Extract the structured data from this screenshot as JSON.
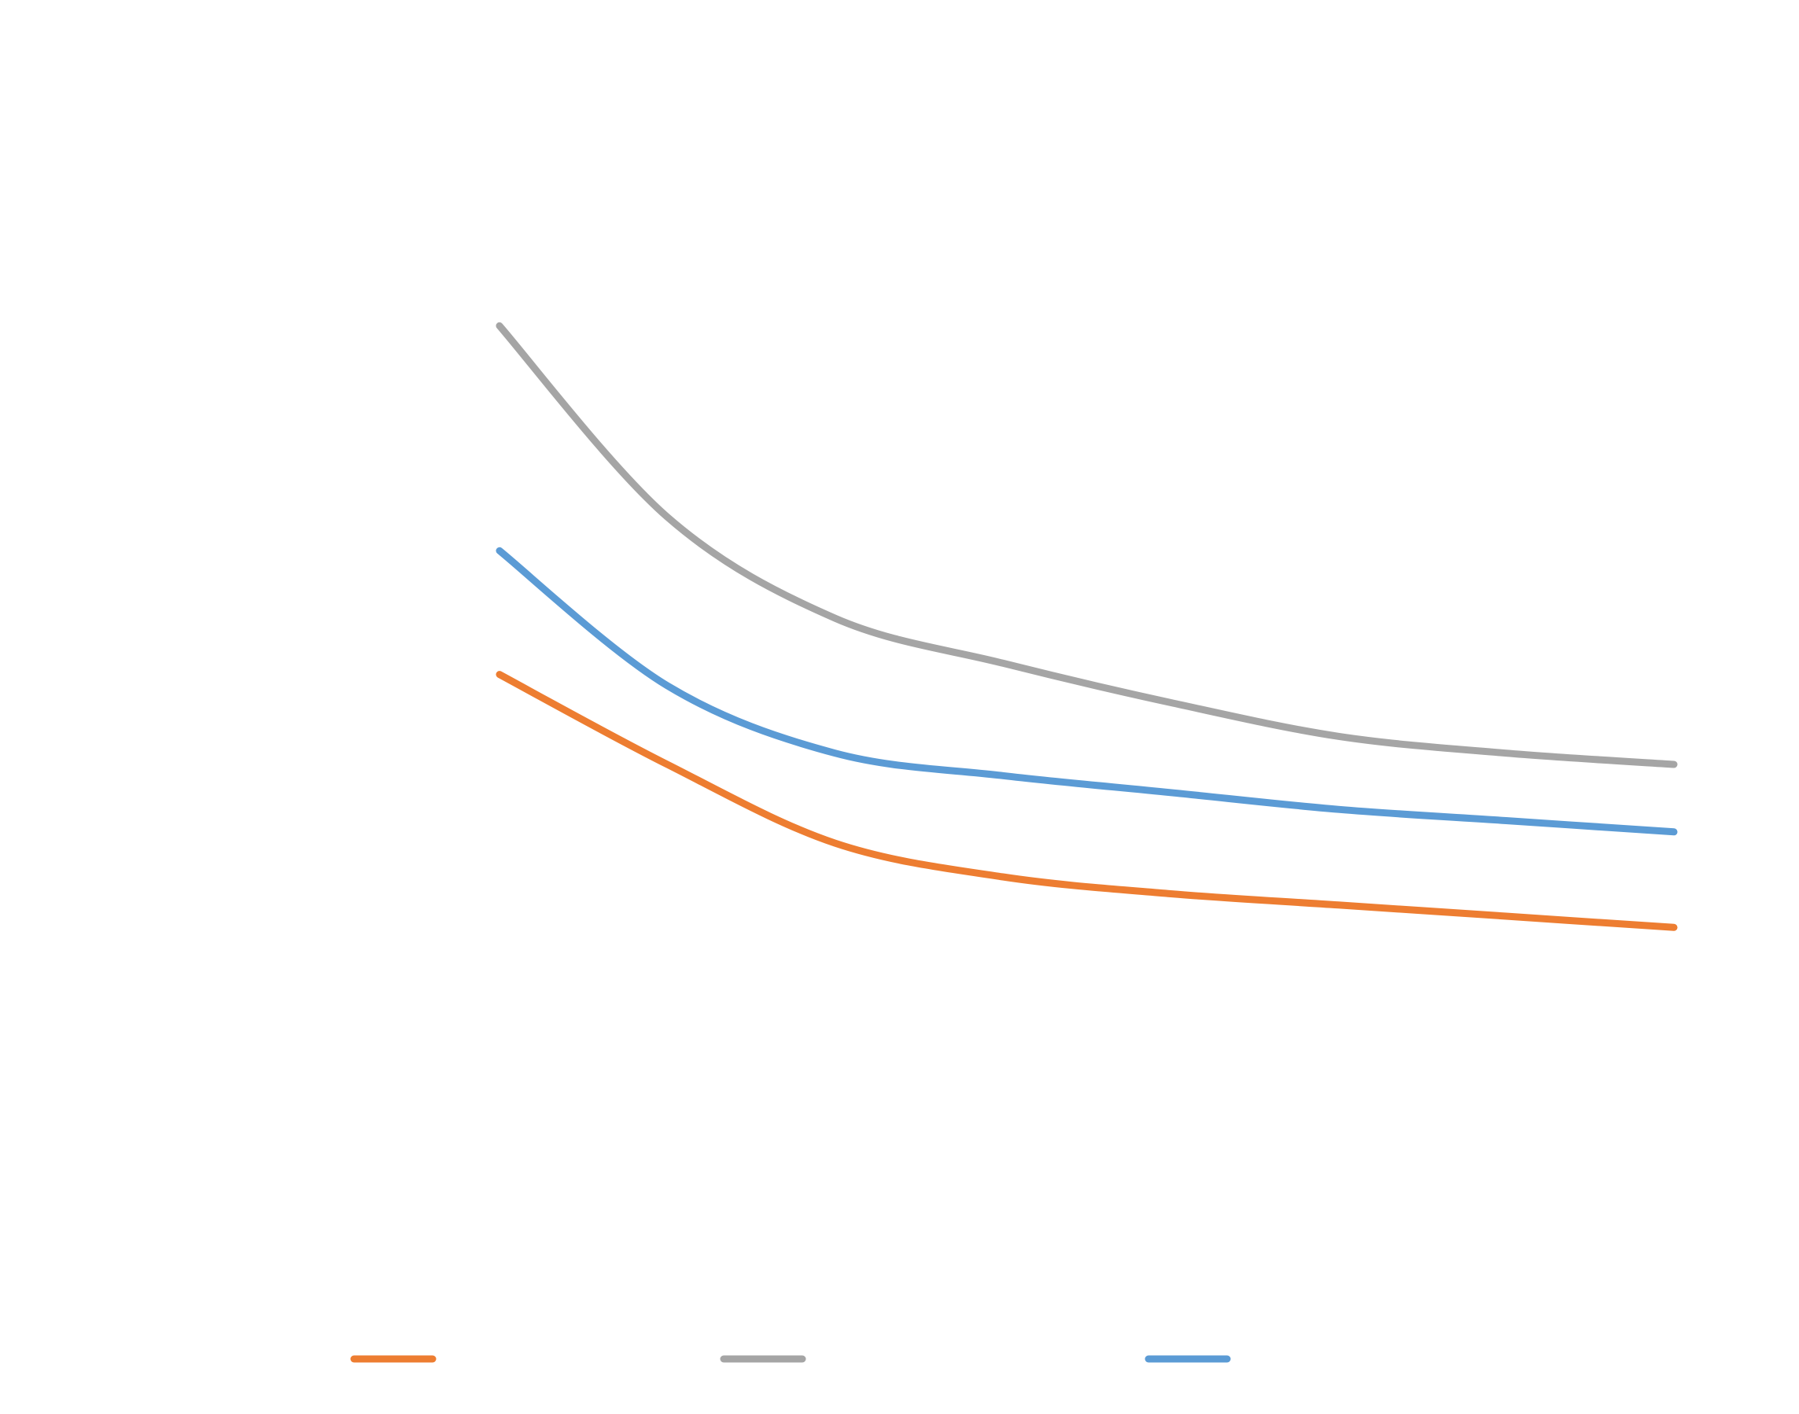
{
  "chart_data": {
    "type": "line",
    "title": "",
    "xlabel": "",
    "ylabel": "",
    "grid": false,
    "legend_position": "bottom",
    "x": [
      1,
      2,
      3,
      4,
      5,
      6,
      7,
      8
    ],
    "xlim": [
      1,
      8
    ],
    "ylim": [
      0,
      100
    ],
    "series": [
      {
        "name": "",
        "color": "#ED7D31",
        "values": [
          48,
          40,
          33,
          30,
          28.5,
          27.5,
          26.5,
          25.5
        ]
      },
      {
        "name": "",
        "color": "#A5A5A5",
        "values": [
          79,
          62,
          53,
          49,
          45.5,
          42.5,
          41,
          40
        ]
      },
      {
        "name": "",
        "color": "#5B9BD5",
        "values": [
          59,
          47,
          41,
          39,
          37.5,
          36,
          35,
          34
        ]
      }
    ]
  }
}
